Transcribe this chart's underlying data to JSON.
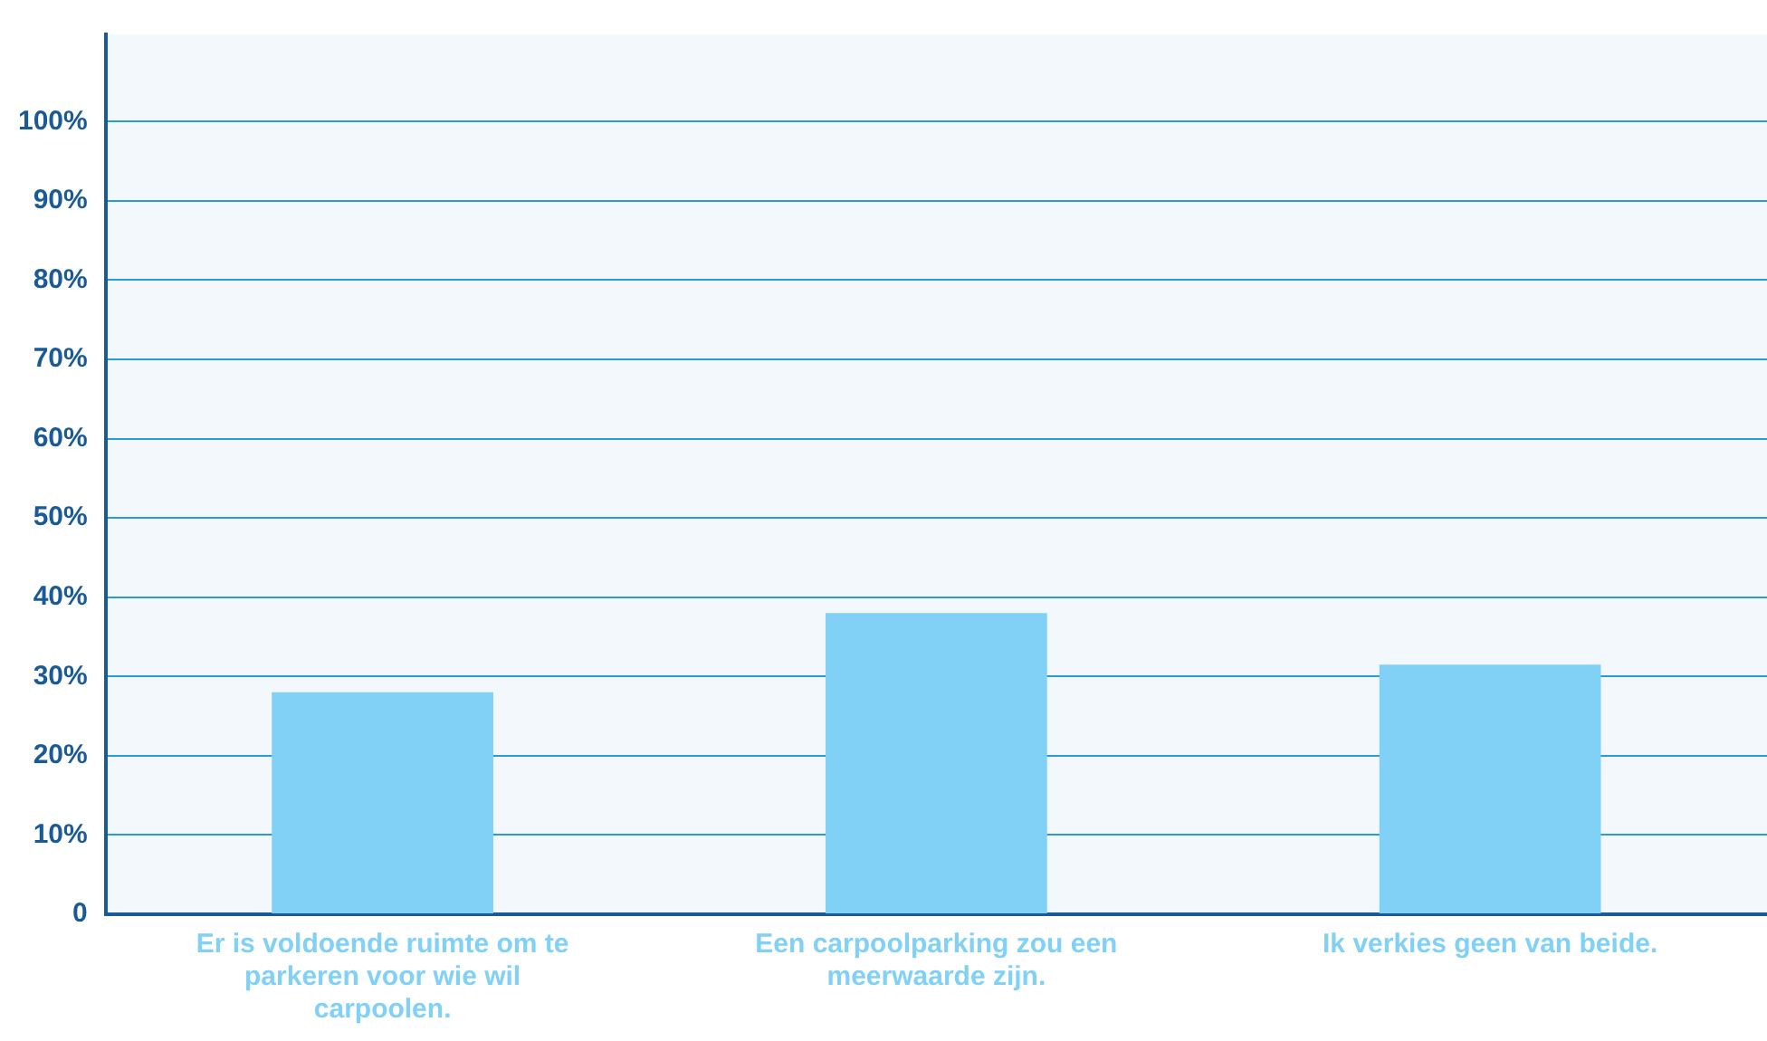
{
  "chart_data": {
    "type": "bar",
    "categories": [
      "Er is voldoende ruimte om te parkeren voor wie wil carpoolen.",
      "Een carpoolparking zou een meerwaarde zijn.",
      "Ik verkies geen van beide."
    ],
    "values": [
      28,
      38,
      31.5
    ],
    "color": "#81d0f5",
    "ylim": [
      0,
      111
    ],
    "yticks": [
      0,
      {
        "value": 10,
        "label": "10%"
      },
      {
        "value": 20,
        "label": "20%"
      },
      {
        "value": 30,
        "label": "30%"
      },
      {
        "value": 40,
        "label": "40%"
      },
      {
        "value": 50,
        "label": "50%"
      },
      {
        "value": 60,
        "label": "60%"
      },
      {
        "value": 70,
        "label": "70%"
      },
      {
        "value": 80,
        "label": "80%"
      },
      {
        "value": 90,
        "label": "90%"
      },
      {
        "value": 100,
        "label": "100%"
      }
    ],
    "grid": "y",
    "legend": false
  }
}
